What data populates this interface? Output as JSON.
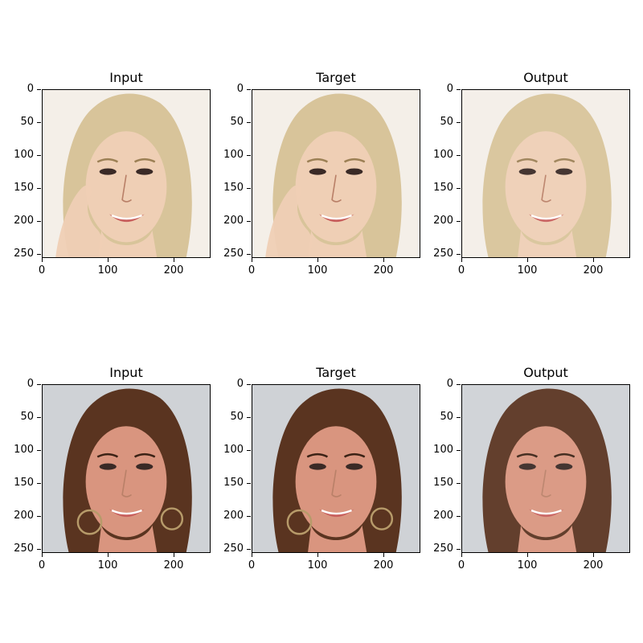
{
  "figure": {
    "rows": [
      {
        "panels": [
          {
            "title": "Input",
            "subject": "blonde"
          },
          {
            "title": "Target",
            "subject": "blonde"
          },
          {
            "title": "Output",
            "subject": "blonde-output"
          }
        ]
      },
      {
        "panels": [
          {
            "title": "Input",
            "subject": "brunette"
          },
          {
            "title": "Target",
            "subject": "brunette"
          },
          {
            "title": "Output",
            "subject": "brunette-output"
          }
        ]
      }
    ],
    "y_ticks": [
      "0",
      "50",
      "100",
      "150",
      "200",
      "250"
    ],
    "x_ticks": [
      "0",
      "100",
      "200"
    ],
    "colors": {
      "blonde_hair": "#d8c49a",
      "blonde_skin": "#efcfb5",
      "blonde_bg": "#f4efe8",
      "brunette_hair": "#5a3420",
      "brunette_skin": "#d9957f",
      "brunette_bg": "#cfd2d6"
    }
  }
}
